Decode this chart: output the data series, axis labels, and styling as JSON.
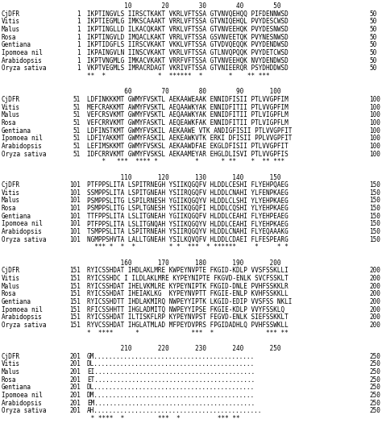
{
  "figsize": [
    4.74,
    5.46
  ],
  "dpi": 100,
  "bg_color": "#ffffff",
  "font_size": 5.5,
  "blocks": [
    {
      "ruler": "          10        20        30        40        50",
      "species": [
        "CjDFR",
        "Vitis",
        "Malus",
        "Rosa",
        "Gentiana",
        "Ipomoea nil",
        "Arabidopsis",
        "Oryza sativa"
      ],
      "start": [
        "1",
        "1",
        "1",
        "1",
        "1",
        "1",
        "1",
        "1"
      ],
      "seqs": [
        "IKPTINGVLS IIRSCTKAKT VKRLVFTSSA GTVNVQEHQQ PIFDENNWSD",
        "IKPTIEGMLG IMKSCAAAKT VRRLVFTSSA GTVNIQEHQL PVYDESCWSD",
        "IKPTINGLLD ILKACQKAKT VRKLVFTSSA GTVNVEEHQK PVYDESNWSD",
        "IKPTINGVLD IMQACLKAKT VRRLVFTSSA GSVNVEETQK PVYNESNWSD",
        "IKPTIDGFLS IIRSCVKAKT VKKLVFTSSA GTVDVQEQQK PVYDENDWSD",
        "IKPAINGVLN IINSCVKAKT VKRLVFTSSA GTLNVQPQQK PVYDETCWSD",
        "IKPTVNGMLG IMKACVKAKT VRRFVFTSSA GTVNVEEHQK NVYDENDWSD",
        "VKPTVEGMLS IMRACRDAGT VKRIVFTSSA GTVNIEERQR PSYDHDDWSD"
      ],
      "end": [
        "50",
        "50",
        "50",
        "50",
        "50",
        "50",
        "50",
        "50"
      ],
      "cons": "**  *              *  ******  *       *    ** ***"
    },
    {
      "ruler": "          60        70        80        90       100",
      "species": [
        "CjDFR",
        "Vitis",
        "Malus",
        "Rosa",
        "Gentiana",
        "Ipomoea nil",
        "Arabidopsis",
        "Oryza sativa"
      ],
      "start": [
        "51",
        "51",
        "51",
        "51",
        "51",
        "51",
        "51",
        "51"
      ],
      "seqs": [
        "LDFINKKKMT GWMYFVSKTL AEKAAWEAAK ENNIDFISII PTLVVGPFIM",
        "MEFCRAKKMT AWMYFVSKTL AEQAAWKYAK ENNIDFITII PTLVVGPFIM",
        "VEFCRSVKMT GWMYFVSKTL AEQAAWKYAK ENNIDFITII PTLVIGPFLM",
        "VEFCRRVKMT GWMYFASKTL AEQEAWKFAK ENNIDFITII PTLVIGPFLM",
        "LDFINSTKMT GWMYFVSKIL AEKAAWE VTK ANDIGFISII PTLVVGPFIT",
        "LDFIYAKKMT GWMYFASKIL AEKEAWKVTK ERKI DFISII PPLVVGPFIT",
        "LEFIMSKKMT GWMYFVSKSL AEKAAWDFAE EKGLDFISII PTLVVGPFIT",
        "IDFCRRVKMT GWMYFVSKSL AEKAAMEYAR EHGLDLISVI PTLVVGPFIS"
      ],
      "end": [
        "100",
        "100",
        "100",
        "100",
        "100",
        "100",
        "100",
        "100"
      ],
      "cons": "    *   ***  **** *          *      * **    *  ** ***"
    },
    {
      "ruler": "         110       120       130       140       150",
      "species": [
        "CjDFR",
        "Vitis",
        "Malus",
        "Rosa",
        "Gentiana",
        "Ipomoea nil",
        "Arabidopsis",
        "Oryza sativa"
      ],
      "start": [
        "101",
        "101",
        "101",
        "101",
        "101",
        "101",
        "101",
        "101"
      ],
      "seqs": [
        "PTFPPSLITA LSPITRNEGH YSIIKQGQFV HLDDLCESHI FLYEHPQAEG",
        "SSMPPSLITA LSPITGNEAH YSIIRQGQFV HLDDLCNAHI YLFENPKAEG",
        "PSMPPSLITG LSPILRNESH YGIIKQGQYV HLDDLCLSHI YLYEHPKAEG",
        "PSMPPSLITG LSPLTGNESH YSIIKQGQFI HLDDLCQSHI YLYEHPKAEG",
        "TTFPPSLITA LSLITGNEAH YGIIKQGQFV HLDDLCEAHI FLYEHPEAEG",
        "PTFPPSLITA LSLITGNQAH YSIIKQGQYV HLDDLCEAHI FLYEHPKAEG",
        "TSMPPSLITA LSPITRNEAH YSIIRQGQYV HLDDLCNAHI FLYEQAAAKG",
        "NGMPPSHVTA LALLTGNEAH YSILKQVQFV HLDDLCDAEI FLFESPEARG"
      ],
      "end": [
        "150",
        "150",
        "150",
        "150",
        "150",
        "150",
        "150",
        "150"
      ],
      "cons": "  *** *  *  *         * *  ***  * ******     *     * *"
    },
    {
      "ruler": "         160       170       180       190       200",
      "species": [
        "CjDFR",
        "Vitis",
        "Malus",
        "Rosa",
        "Gentiana",
        "Ipomoea nil",
        "Arabidopsis",
        "Oryza sativa"
      ],
      "start": [
        "151",
        "151",
        "151",
        "151",
        "151",
        "151",
        "151",
        "151"
      ],
      "seqs": [
        "RYICSSHDAT IHDLAKLMRE KWPEYNVPTE FKGID-KDLP VVSFSSKLLI",
        "RYICSSHDC I ILDLAKLMRE KYPEYNIPTE FKGVD-ENLK SVCFSSKLT",
        "RYICSSHDAT IHELVKMLRE KYPEYNIPTK FKGID-DNLE PVHFSSKKLR",
        "RYICSSHDAT IHEIAKLKG  KYPEYNVPTT FKGIE-ENLP KVHFSSKKLL",
        "RYICSSHDTT IHDLAKMIRQ NWPEYYIPTK LKGID-EDIP VVSFSS NKLI",
        "RFICSSHHTT IHGLADMITQ NWPEYYIPSE FKGIE-KDLP VVYFSSKLQ",
        "RYICSSHDAT ILTISKFLRP KYPEYNVPST FEGVD-ENLK SIEFSSKKLT",
        "RYVCSSHDAT IHGLATMLAD MFPEYDVPRS FPGIDADHLQ PVHFSSWKLL"
      ],
      "end": [
        "200",
        "200",
        "200",
        "200",
        "200",
        "200",
        "200",
        "200"
      ],
      "cons": "*  ****      *              ***  *              *** **"
    },
    {
      "ruler": "         210       220       230       240       250",
      "species": [
        "CjDFR",
        "Vitis",
        "Malus",
        "Rosa",
        "Gentiana",
        "Ipomoea nil",
        "Arabidopsis",
        "Oryza sativa"
      ],
      "start": [
        "201",
        "201",
        "201",
        "201",
        "201",
        "201",
        "201",
        "201"
      ],
      "seqs": [
        "GM...........................................",
        "DL...........................................",
        "EI...........................................",
        "ET...........................................",
        "DL...........................................",
        "DM...........................................",
        "EM...........................................",
        "AH............................................."
      ],
      "end": [
        "250",
        "250",
        "250",
        "250",
        "250",
        "250",
        "250",
        "250"
      ],
      "cons": " * ****  *         ***  *          *** **"
    }
  ]
}
